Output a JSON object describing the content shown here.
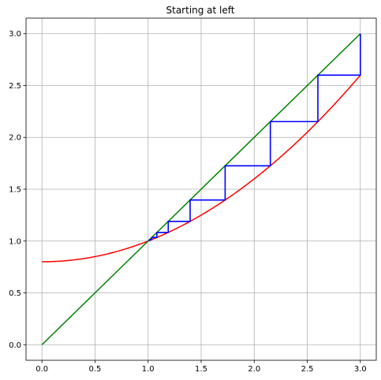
{
  "chart_data": {
    "type": "line",
    "title": "Starting at left",
    "xlabel": "",
    "ylabel": "",
    "xlim": [
      -0.15,
      3.15
    ],
    "ylim": [
      -0.15,
      3.15
    ],
    "grid": true,
    "x_ticks": [
      0.0,
      0.5,
      1.0,
      1.5,
      2.0,
      2.5,
      3.0
    ],
    "x_tick_labels": [
      "0.0",
      "0.5",
      "1.0",
      "1.5",
      "2.0",
      "2.5",
      "3.0"
    ],
    "y_ticks": [
      0.0,
      0.5,
      1.0,
      1.5,
      2.0,
      2.5,
      3.0
    ],
    "y_tick_labels": [
      "0.0",
      "0.5",
      "1.0",
      "1.5",
      "2.0",
      "2.5",
      "3.0"
    ],
    "series": [
      {
        "color": "#ff0000",
        "x": [
          0.0,
          0.25,
          0.5,
          0.75,
          1.0,
          1.25,
          1.5,
          1.75,
          2.0,
          2.25,
          2.5,
          2.75,
          3.0
        ],
        "y": [
          0.8,
          0.81,
          0.84,
          0.89,
          0.96,
          1.05,
          1.16,
          1.29,
          1.44,
          1.61,
          1.8,
          2.01,
          2.6
        ]
      },
      {
        "color": "#008000",
        "x": [
          0.0,
          3.0
        ],
        "y": [
          0.0,
          3.0
        ]
      },
      {
        "color": "#0000ff",
        "x": [
          3.0,
          3.0,
          2.6,
          2.6,
          2.152,
          2.152,
          1.726,
          1.726,
          1.396,
          1.396,
          1.19,
          1.19,
          1.083,
          1.083,
          1.035,
          1.035,
          1.014,
          1.014,
          1.005
        ],
        "y": [
          3.0,
          2.6,
          2.6,
          2.152,
          2.152,
          1.726,
          1.726,
          1.396,
          1.396,
          1.19,
          1.19,
          1.083,
          1.083,
          1.035,
          1.035,
          1.014,
          1.014,
          1.005,
          1.005
        ]
      }
    ]
  }
}
